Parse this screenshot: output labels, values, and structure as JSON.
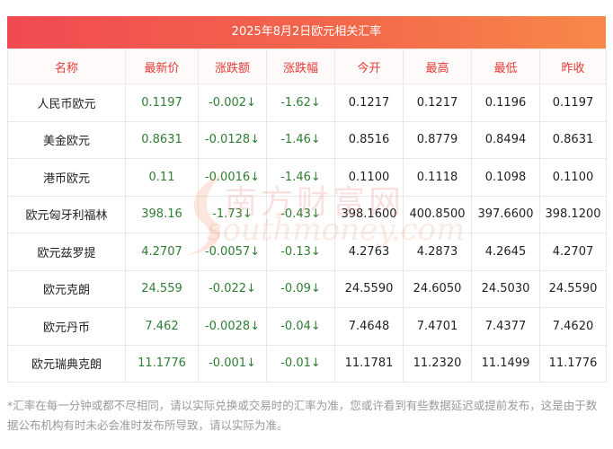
{
  "title": "2025年8月2日欧元相关汇率",
  "columns": [
    "名称",
    "最新价",
    "涨跌额",
    "涨跌幅",
    "今开",
    "最高",
    "最低",
    "昨收"
  ],
  "rows": [
    {
      "name": "人民币欧元",
      "latest": "0.1197",
      "change": "-0.002↓",
      "change_pct": "-1.62↓",
      "open": "0.1217",
      "high": "0.1217",
      "low": "0.1196",
      "prev_close": "0.1197"
    },
    {
      "name": "美金欧元",
      "latest": "0.8631",
      "change": "-0.0128↓",
      "change_pct": "-1.46↓",
      "open": "0.8516",
      "high": "0.8779",
      "low": "0.8494",
      "prev_close": "0.8631"
    },
    {
      "name": "港币欧元",
      "latest": "0.11",
      "change": "-0.0016↓",
      "change_pct": "-1.46↓",
      "open": "0.1100",
      "high": "0.1118",
      "low": "0.1098",
      "prev_close": "0.1100"
    },
    {
      "name": "欧元匈牙利福林",
      "latest": "398.16",
      "change": "-1.73↓",
      "change_pct": "-0.43↓",
      "open": "398.1600",
      "high": "400.8500",
      "low": "397.6600",
      "prev_close": "398.1200"
    },
    {
      "name": "欧元兹罗提",
      "latest": "4.2707",
      "change": "-0.0057↓",
      "change_pct": "-0.13↓",
      "open": "4.2763",
      "high": "4.2873",
      "low": "4.2645",
      "prev_close": "4.2707"
    },
    {
      "name": "欧元克朗",
      "latest": "24.559",
      "change": "-0.022↓",
      "change_pct": "-0.09↓",
      "open": "24.5590",
      "high": "24.6050",
      "low": "24.5030",
      "prev_close": "24.5590"
    },
    {
      "name": "欧元丹币",
      "latest": "7.462",
      "change": "-0.0028↓",
      "change_pct": "-0.04↓",
      "open": "7.4648",
      "high": "7.4701",
      "low": "7.4377",
      "prev_close": "7.4620"
    },
    {
      "name": "欧元瑞典克朗",
      "latest": "11.1776",
      "change": "-0.001↓",
      "change_pct": "-0.01↓",
      "open": "11.1781",
      "high": "11.2320",
      "low": "11.1499",
      "prev_close": "11.1776"
    }
  ],
  "watermark": {
    "cn": "南方财富网",
    "en": "southmoney.com"
  },
  "footnote": "*汇率在每一分钟或都不尽相同，请以实际兑换或交易时的汇率为准，您或许看到有些数据延迟或提前发布，这是由于数据公布机构有时未必会准时发布所导致，请以实际为准。",
  "colors": {
    "header_text": "#e53935",
    "title_gradient_start": "#f04a52",
    "title_gradient_end": "#f7884a",
    "down": "#2e7d32"
  }
}
